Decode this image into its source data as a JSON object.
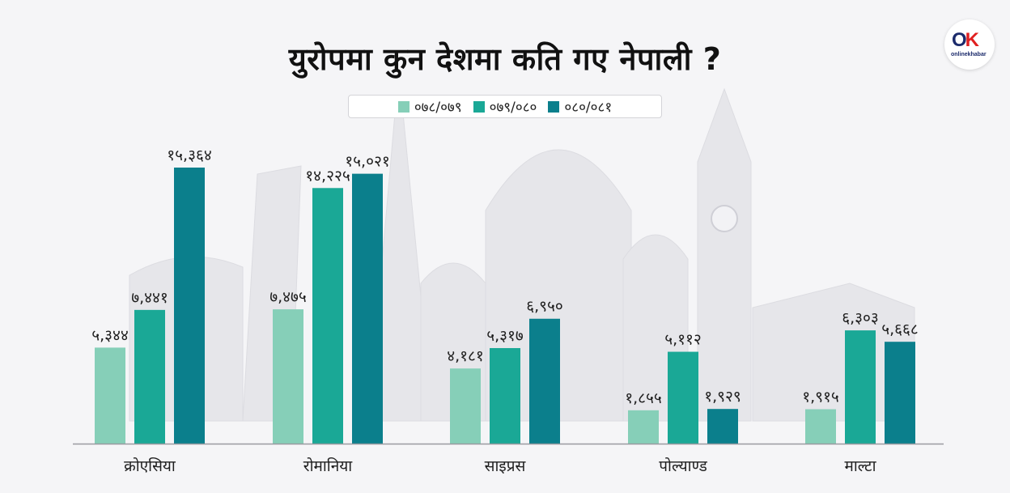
{
  "title": "युरोपमा कुन देशमा कति गए नेपाली ?",
  "logo": {
    "brand": "onlinekhabar"
  },
  "colors": {
    "series_0": "#86cfb8",
    "series_1": "#1aa896",
    "series_2": "#0b7f8c",
    "axis": "#9a9aa0"
  },
  "legend": [
    {
      "label": "०७८/०७९",
      "color": "#86cfb8"
    },
    {
      "label": "०७९/०८०",
      "color": "#1aa896"
    },
    {
      "label": "०८०/०८१",
      "color": "#0b7f8c"
    }
  ],
  "chart_data": {
    "type": "bar",
    "title": "युरोपमा कुन देशमा कति गए नेपाली ?",
    "categories": [
      "क्रोएसिया",
      "रोमानिया",
      "साइप्रस",
      "पोल्याण्ड",
      "माल्टा"
    ],
    "series": [
      {
        "name": "०७८/०७९",
        "values": [
          5344,
          7475,
          4181,
          1855,
          1915
        ],
        "labels": [
          "५,३४४",
          "७,४७५",
          "४,१८१",
          "१,८५५",
          "१,९१५"
        ]
      },
      {
        "name": "०७९/०८०",
        "values": [
          7441,
          14225,
          5317,
          5112,
          6303
        ],
        "labels": [
          "७,४४१",
          "१४,२२५",
          "५,३१७",
          "५,११२",
          "६,३०३"
        ]
      },
      {
        "name": "०८०/०८१",
        "values": [
          15364,
          15021,
          6950,
          1929,
          5668
        ],
        "labels": [
          "१५,३६४",
          "१५,०२१",
          "६,९५०",
          "१,९२९",
          "५,६६८"
        ]
      }
    ],
    "ylim": [
      0,
      15364
    ],
    "grid": false,
    "legend_position": "top-center"
  }
}
